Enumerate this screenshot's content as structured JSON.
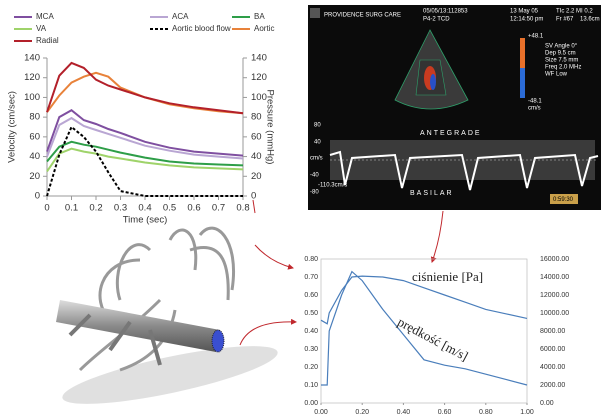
{
  "chart_data": [
    {
      "type": "line",
      "xlabel": "Time (sec)",
      "ylabel": "Velocity (cm/sec)",
      "y2label": "Pressure (mmHg)",
      "x": [
        0,
        0.05,
        0.1,
        0.15,
        0.2,
        0.25,
        0.3,
        0.4,
        0.5,
        0.6,
        0.7,
        0.8
      ],
      "xlim": [
        0,
        0.8
      ],
      "xticks": [
        0,
        0.1,
        0.2,
        0.3,
        0.4,
        0.5,
        0.6,
        0.7,
        0.8
      ],
      "ylim": [
        0,
        140
      ],
      "yticks": [
        0,
        20,
        40,
        60,
        80,
        100,
        120,
        140
      ],
      "y2lim": [
        0,
        140
      ],
      "y2ticks": [
        0,
        20,
        40,
        60,
        80,
        100,
        120,
        140
      ],
      "grid": false,
      "legend": "top",
      "series": [
        {
          "name": "MCA",
          "color": "#7f4fa0",
          "values": [
            45,
            80,
            87,
            77,
            73,
            68,
            64,
            55,
            49,
            45,
            43,
            41
          ]
        },
        {
          "name": "ACA",
          "color": "#b9a6d3",
          "values": [
            40,
            72,
            79,
            71,
            67,
            63,
            59,
            51,
            46,
            42,
            40,
            38
          ]
        },
        {
          "name": "BA",
          "color": "#2e9e48",
          "values": [
            35,
            50,
            55,
            52,
            50,
            47,
            44,
            39,
            35,
            33,
            32,
            31
          ]
        },
        {
          "name": "VA",
          "color": "#9fd36a",
          "values": [
            25,
            43,
            48,
            45,
            43,
            40,
            38,
            34,
            31,
            29,
            28,
            27
          ]
        },
        {
          "name": "Aortic blood flow",
          "color": "#000000",
          "dashed": true,
          "values": [
            0,
            42,
            70,
            60,
            45,
            24,
            5,
            0,
            0,
            0,
            0,
            0
          ]
        },
        {
          "name": "Aortic",
          "color": "#e8823a",
          "axis": "y2",
          "values": [
            85,
            102,
            115,
            121,
            125,
            121,
            110,
            100,
            93,
            89,
            86,
            84
          ]
        },
        {
          "name": "Radial",
          "color": "#b3202a",
          "axis": "y2",
          "values": [
            85,
            122,
            135,
            130,
            118,
            112,
            108,
            100,
            94,
            90,
            87,
            84
          ]
        }
      ]
    },
    {
      "type": "line",
      "x": [
        0,
        0.03,
        0.04,
        0.1,
        0.15,
        0.2,
        0.3,
        0.4,
        0.5,
        0.6,
        0.7,
        0.8,
        0.9,
        1.0
      ],
      "xlim": [
        0,
        1
      ],
      "xticks": [
        {
          "value": 0,
          "label": "0.00"
        },
        {
          "value": 0.2,
          "label": "0.20"
        },
        {
          "value": 0.4,
          "label": "0.40"
        },
        {
          "value": 0.6,
          "label": "0.60"
        },
        {
          "value": 0.8,
          "label": "0.80"
        },
        {
          "value": 1,
          "label": "1.00"
        }
      ],
      "ylim": [
        0,
        0.8
      ],
      "yticks": [
        {
          "value": 0,
          "label": "0.00"
        },
        {
          "value": 0.1,
          "label": "0.10"
        },
        {
          "value": 0.2,
          "label": "0.20"
        },
        {
          "value": 0.3,
          "label": "0.30"
        },
        {
          "value": 0.4,
          "label": "0.40"
        },
        {
          "value": 0.5,
          "label": "0.50"
        },
        {
          "value": 0.6,
          "label": "0.60"
        },
        {
          "value": 0.7,
          "label": "0.70"
        },
        {
          "value": 0.8,
          "label": "0.80"
        }
      ],
      "y2lim": [
        0,
        16000
      ],
      "y2ticks": [
        {
          "value": 0,
          "label": "0.00"
        },
        {
          "value": 2000,
          "label": "2000.00"
        },
        {
          "value": 4000,
          "label": "4000.00"
        },
        {
          "value": 6000,
          "label": "6000.00"
        },
        {
          "value": 8000,
          "label": "8000.00"
        },
        {
          "value": 10000,
          "label": "10000.00"
        },
        {
          "value": 12000,
          "label": "12000.00"
        },
        {
          "value": 14000,
          "label": "14000.00"
        },
        {
          "value": 16000,
          "label": "16000.00"
        }
      ],
      "grid": false,
      "series": [
        {
          "name": "ciśnienie [Pa]",
          "color": "#4a7ebb",
          "axis": "y2",
          "values": [
            9200,
            8800,
            10000,
            12500,
            14000,
            14100,
            14000,
            13600,
            12800,
            12000,
            11200,
            10400,
            9900,
            9400
          ]
        },
        {
          "name": "prędkość [m/s]",
          "color": "#4a7ebb",
          "values": [
            0.1,
            0.1,
            0.4,
            0.6,
            0.73,
            0.68,
            0.52,
            0.38,
            0.24,
            0.21,
            0.19,
            0.16,
            0.13,
            0.1
          ]
        }
      ]
    }
  ],
  "ultrasound": {
    "clinic": "PROVIDENCE SURG CARE",
    "study": "05/05/13:112853",
    "probe": "P4-2 TCD",
    "date": "13 May 05",
    "time": "12:14:50 pm",
    "tic": "TIc 2.2",
    "mi": "MI 0.2",
    "frame": "Fr #67",
    "depth": "13.6cm",
    "settings": [
      "SV Angle 0°",
      "Dep 9.5 cm",
      "Size 7.5 mm",
      "Freq 2.0 MHz",
      "WF Low"
    ],
    "scale_top": "+48.1",
    "scale_bottom": "-48.1",
    "scale_unit": "cm/s",
    "spectrum_ticks": [
      "80",
      "40",
      "-40",
      "-80"
    ],
    "spectrum_unit": "cm/s",
    "label_top": "ANTEGRADE",
    "label_bottom": "BASILAR",
    "peak": "-110.3cm/s",
    "clock": "0:59:30"
  }
}
